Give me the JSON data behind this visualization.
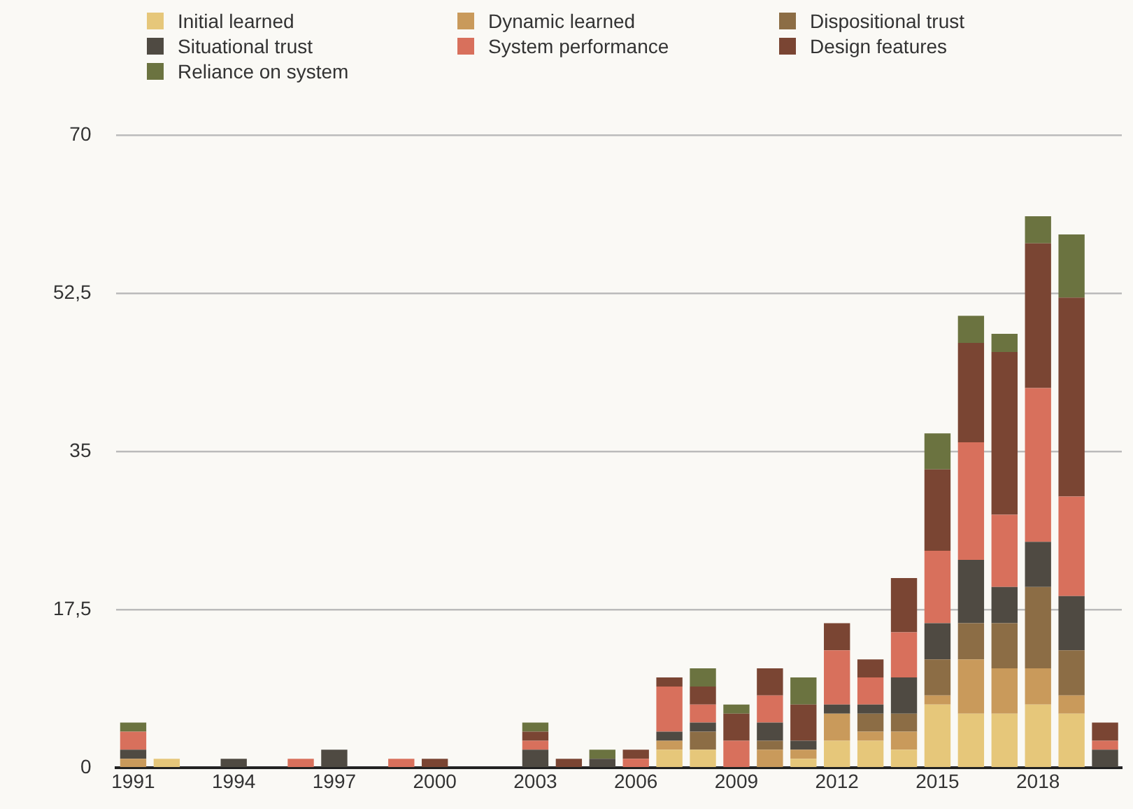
{
  "chart_data": {
    "type": "bar",
    "stacked": true,
    "categories": [
      "1991",
      null,
      null,
      "1994",
      null,
      null,
      "1997",
      null,
      null,
      "2000",
      null,
      null,
      "2003",
      null,
      null,
      "2006",
      null,
      null,
      "2009",
      null,
      null,
      "2012",
      null,
      null,
      "2015",
      null,
      null,
      "2018",
      null,
      null
    ],
    "series": [
      {
        "name": "Initial learned",
        "color": "#e6c77a",
        "values": [
          0,
          1,
          0,
          0,
          0,
          0,
          0,
          0,
          0,
          0,
          0,
          0,
          0,
          0,
          0,
          0,
          2,
          2,
          0,
          0,
          1,
          3,
          3,
          2,
          7,
          6,
          6,
          7,
          6,
          0
        ]
      },
      {
        "name": "Dynamic learned",
        "color": "#c99a5b",
        "values": [
          1,
          0,
          0,
          0,
          0,
          0,
          0,
          0,
          0,
          0,
          0,
          0,
          0,
          0,
          0,
          0,
          1,
          0,
          0,
          2,
          1,
          3,
          1,
          2,
          1,
          6,
          5,
          4,
          2,
          0
        ]
      },
      {
        "name": "Dispositional trust",
        "color": "#8c6d45",
        "values": [
          0,
          0,
          0,
          0,
          0,
          0,
          0,
          0,
          0,
          0,
          0,
          0,
          0,
          0,
          0,
          0,
          0,
          2,
          0,
          1,
          0,
          0,
          2,
          2,
          4,
          4,
          5,
          9,
          5,
          0
        ]
      },
      {
        "name": "Situational trust",
        "color": "#4f4a42",
        "values": [
          1,
          0,
          0,
          1,
          0,
          0,
          2,
          0,
          0,
          0,
          0,
          0,
          2,
          0,
          1,
          0,
          1,
          1,
          0,
          2,
          1,
          1,
          1,
          4,
          4,
          7,
          4,
          5,
          6,
          2
        ]
      },
      {
        "name": "System performance",
        "color": "#d8705c",
        "values": [
          2,
          0,
          0,
          0,
          0,
          1,
          0,
          0,
          1,
          0,
          0,
          0,
          1,
          0,
          0,
          1,
          5,
          2,
          3,
          3,
          0,
          6,
          3,
          5,
          8,
          13,
          8,
          17,
          11,
          1
        ]
      },
      {
        "name": "Design features",
        "color": "#7a4533",
        "values": [
          0,
          0,
          0,
          0,
          0,
          0,
          0,
          0,
          0,
          1,
          0,
          0,
          1,
          1,
          0,
          1,
          1,
          2,
          3,
          3,
          4,
          3,
          2,
          6,
          9,
          11,
          18,
          16,
          22,
          2
        ]
      },
      {
        "name": "Reliance on system",
        "color": "#6b7340",
        "values": [
          1,
          0,
          0,
          0,
          0,
          0,
          0,
          0,
          0,
          0,
          0,
          0,
          1,
          0,
          1,
          0,
          0,
          2,
          1,
          0,
          3,
          0,
          0,
          0,
          4,
          3,
          2,
          3,
          7,
          0
        ]
      }
    ],
    "ylim": [
      0,
      70
    ],
    "yticks": [
      0,
      {
        "value": 17.5,
        "label": "17,5"
      },
      35,
      {
        "value": 52.5,
        "label": "52,5"
      },
      70
    ],
    "grid": "y",
    "legend": "top"
  }
}
